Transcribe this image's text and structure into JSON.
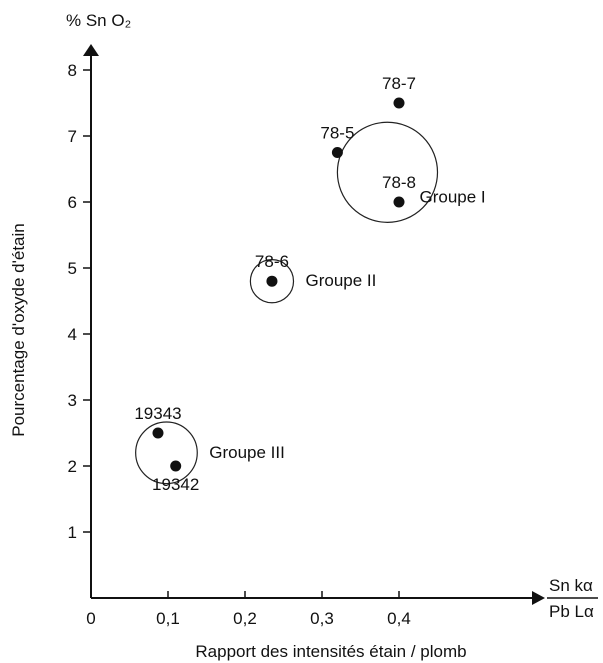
{
  "chart_data": {
    "type": "scatter",
    "y_unit_label": "% Sn O₂",
    "x_unit_label": {
      "numerator": "Sn kα",
      "denominator": "Pb Lα"
    },
    "xlabel": "Rapport des intensités étain / plomb",
    "ylabel": "Pourcentage d'oxyde d'étain",
    "xlim": [
      0,
      0.48
    ],
    "ylim": [
      0,
      8.3
    ],
    "x_ticks": [
      "0",
      "0,1",
      "0,2",
      "0,3",
      "0,4"
    ],
    "y_ticks": [
      "1",
      "2",
      "3",
      "4",
      "5",
      "6",
      "7",
      "8"
    ],
    "grid": false,
    "points": [
      {
        "label": "78-7",
        "x": 0.4,
        "y": 7.5,
        "label_pos": "above"
      },
      {
        "label": "78-5",
        "x": 0.32,
        "y": 6.75,
        "label_pos": "above"
      },
      {
        "label": "78-8",
        "x": 0.4,
        "y": 6.0,
        "label_pos": "above"
      },
      {
        "label": "78-6",
        "x": 0.235,
        "y": 4.8,
        "label_pos": "above"
      },
      {
        "label": "19343",
        "x": 0.087,
        "y": 2.5,
        "label_pos": "above"
      },
      {
        "label": "19342",
        "x": 0.11,
        "y": 2.0,
        "label_pos": "below"
      }
    ],
    "groups": [
      {
        "name": "Groupe I",
        "cx": 0.385,
        "cy": 6.45,
        "r": 0.065
      },
      {
        "name": "Groupe II",
        "cx": 0.235,
        "cy": 4.8,
        "r": 0.028
      },
      {
        "name": "Groupe III",
        "cx": 0.098,
        "cy": 2.2,
        "r": 0.04
      }
    ]
  }
}
